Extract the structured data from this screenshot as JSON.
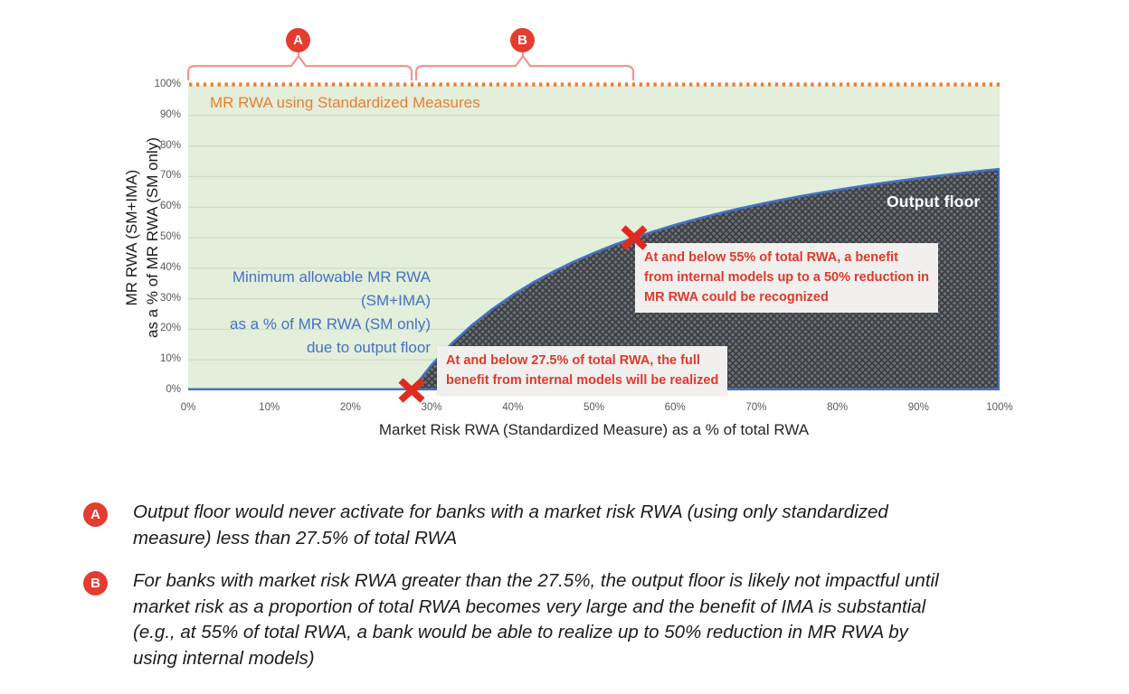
{
  "chart_data": {
    "type": "area",
    "x_axis": {
      "label": "Market Risk RWA (Standardized Measure) as a % of total RWA",
      "ticks": [
        "0%",
        "10%",
        "20%",
        "30%",
        "40%",
        "50%",
        "60%",
        "70%",
        "80%",
        "90%",
        "100%"
      ],
      "range": [
        0,
        100
      ]
    },
    "y_axis": {
      "label": "MR RWA (SM+IMA) as a % of MR RWA (SM only)",
      "label_lines": [
        "MR RWA (SM+IMA)",
        "as a % of MR RWA (SM only)"
      ],
      "ticks": [
        "100%",
        "90%",
        "80%",
        "70%",
        "60%",
        "50%",
        "40%",
        "30%",
        "20%",
        "10%",
        "0%"
      ],
      "range": [
        0,
        100
      ]
    },
    "grid": "horizontal gridlines every 10%",
    "series": [
      {
        "name": "MR RWA using Standardized Measures",
        "style": "dotted-line",
        "color": "#ed7d31",
        "x": [
          0,
          100
        ],
        "y": [
          100,
          100
        ]
      },
      {
        "name": "Minimum allowable MR RWA (SM+IMA) as a % of MR RWA (SM only) due to output floor",
        "style": "line",
        "color": "#4472c4",
        "x": [
          0,
          27.5,
          30,
          32.5,
          35,
          37.5,
          40,
          42.5,
          45,
          47.5,
          50,
          52.5,
          55,
          57.5,
          60,
          62.5,
          65,
          67.5,
          70,
          72.5,
          75,
          77.5,
          80,
          82.5,
          85,
          87.5,
          90,
          92.5,
          95,
          97.5,
          100
        ],
        "y": [
          0,
          0,
          8.33,
          15.38,
          21.43,
          26.67,
          31.25,
          35.29,
          38.89,
          42.11,
          45,
          47.62,
          50,
          52.17,
          54.17,
          56,
          57.69,
          59.26,
          60.71,
          62.07,
          63.33,
          64.52,
          65.63,
          66.67,
          67.65,
          68.57,
          69.44,
          70.27,
          71.05,
          71.79,
          72.5
        ]
      }
    ],
    "shaded_area": {
      "name": "Output floor",
      "description": "dark crosshatched region between the floor curve and 0%, from 27.5% to 100%"
    },
    "markers": [
      {
        "x": 27.5,
        "y": 0,
        "shape": "x"
      },
      {
        "x": 55,
        "y": 50,
        "shape": "x"
      }
    ]
  },
  "overlays": {
    "standardized_label": "MR RWA using Standardized Measures",
    "floor_label_lines": [
      "Minimum allowable MR RWA",
      "(SM+IMA)",
      "as a % of MR RWA (SM only)",
      "due to output floor"
    ],
    "output_floor_label": "Output floor",
    "callout_275_lines": [
      "At and below 27.5% of total RWA, the full",
      "benefit from internal models will be realized"
    ],
    "callout_55_lines": [
      "At and below 55% of total RWA, a benefit",
      "from internal models up to a 50% reduction in",
      "MR RWA could be recognized"
    ],
    "bracket_a": "A",
    "bracket_b": "B"
  },
  "notes": [
    {
      "marker": "A",
      "lines": [
        "Output floor would never activate for banks with a market risk RWA (using only standardized",
        "measure) less than 27.5% of total RWA"
      ]
    },
    {
      "marker": "B",
      "lines": [
        "For banks with market risk RWA greater than the 27.5%, the output floor is likely not impactful until",
        "market risk as a proportion of total RWA becomes very large and the benefit of IMA is substantial",
        "(e.g., at 55% of total RWA, a bank would be able to realize up to 50% reduction in MR RWA by",
        "using internal models)"
      ]
    }
  ],
  "colors": {
    "orange": "#ed7d31",
    "blue": "#4472c4",
    "red_marker": "#dd2c1f",
    "red_badge": "#e43c30",
    "red_text": "#e0392b",
    "bracket_salmon": "#f2968e",
    "plot_green": "#e3efda",
    "gridline": "#cfd9c6",
    "hatch_base": "#6c6f74",
    "hatch_line": "#3a3d42",
    "callout_bg": "#f1f0ee",
    "tick_text": "#595959"
  }
}
